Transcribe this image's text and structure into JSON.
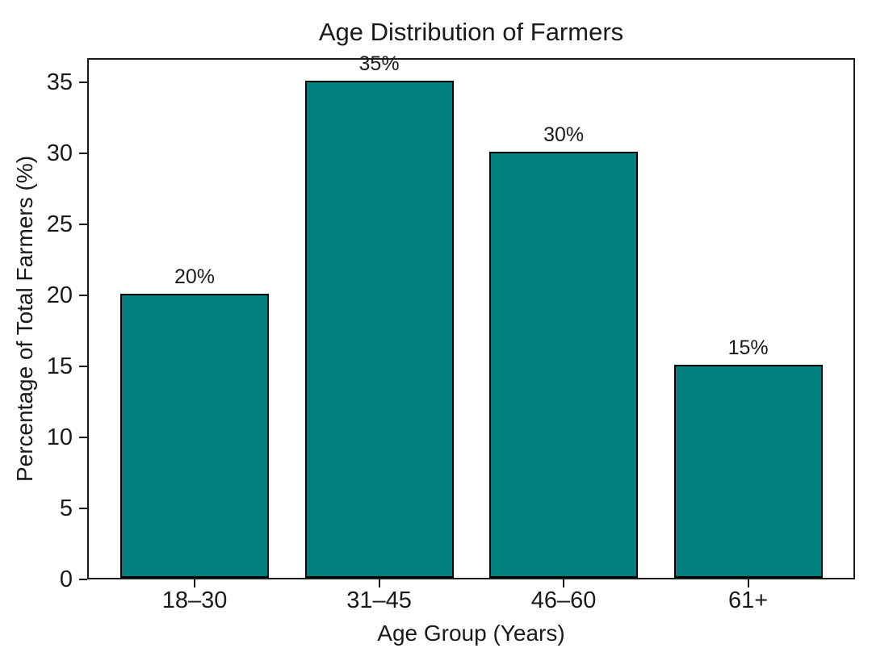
{
  "chart_data": {
    "type": "bar",
    "title": "Age Distribution of Farmers",
    "xlabel": "Age Group (Years)",
    "ylabel": "Percentage of Total Farmers (%)",
    "categories": [
      "18–30",
      "31–45",
      "46–60",
      "61+"
    ],
    "values": [
      20,
      35,
      30,
      15
    ],
    "bar_labels": [
      "20%",
      "35%",
      "30%",
      "15%"
    ],
    "yticks": [
      0,
      5,
      10,
      15,
      20,
      25,
      30,
      35
    ],
    "ylim": [
      0,
      36.7
    ],
    "grid": false,
    "legend": "none",
    "bar_color": "#008080",
    "bar_edge_color": "#000000",
    "axis_color": "#1a1a1a",
    "text_color": "#1a1a1a",
    "background_color": "#ffffff"
  }
}
